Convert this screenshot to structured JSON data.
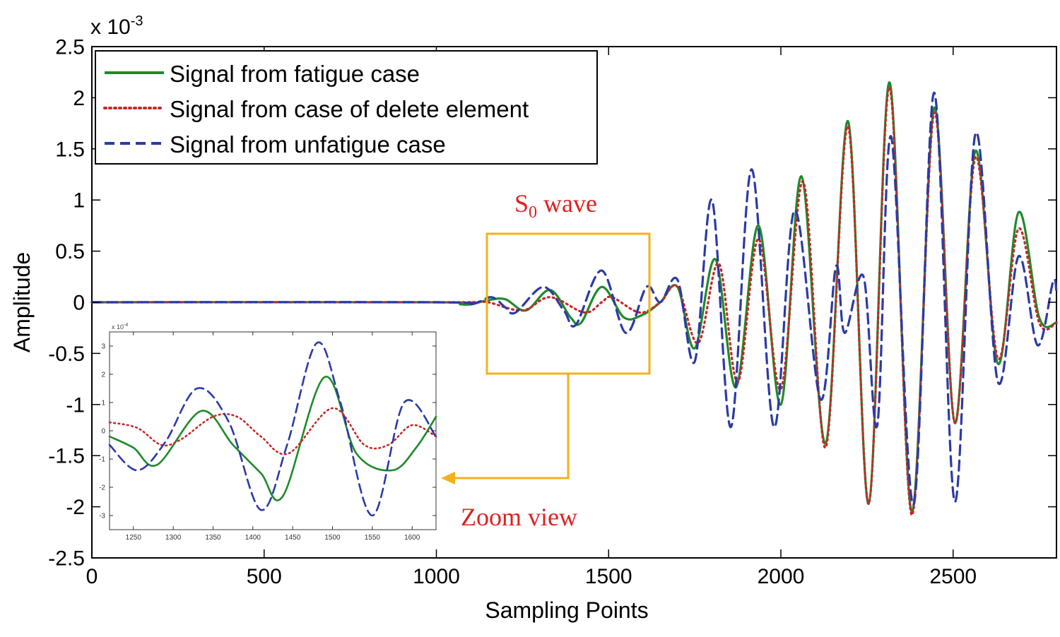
{
  "chart_data": [
    {
      "type": "line",
      "xlabel": "Sampling Points",
      "ylabel": "Amplitude",
      "y_multiplier": "x 10",
      "y_exponent": "-3",
      "xlim": [
        0,
        2800
      ],
      "ylim": [
        -2.5,
        2.5
      ],
      "x_ticks": [
        0,
        500,
        1000,
        1500,
        2000,
        2500
      ],
      "x_tick_labels": [
        "0",
        "500",
        "1000",
        "1500",
        "2000",
        "2500"
      ],
      "y_ticks": [
        2.5,
        2,
        1.5,
        1,
        0.5,
        0,
        -0.5,
        -1,
        -1.5,
        -2,
        -2.5
      ],
      "y_tick_labels": [
        "2.5",
        "2",
        "1.5",
        "1",
        "0.5",
        "0",
        "-0.5",
        "-1",
        "-1.5",
        "-2",
        "-2.5"
      ],
      "legend_position": "top-left",
      "series": [
        {
          "name": "Signal from fatigue case",
          "color": "#1f8a2a",
          "dash": "solid",
          "points": [
            [
              0,
              0
            ],
            [
              1000,
              0
            ],
            [
              1070,
              -0.02
            ],
            [
              1100,
              -0.02
            ],
            [
              1150,
              0.02
            ],
            [
              1200,
              0.03
            ],
            [
              1260,
              -0.08
            ],
            [
              1330,
              0.12
            ],
            [
              1390,
              -0.15
            ],
            [
              1420,
              -0.2
            ],
            [
              1480,
              0.15
            ],
            [
              1545,
              -0.15
            ],
            [
              1600,
              -0.12
            ],
            [
              1650,
              0.0
            ],
            [
              1700,
              0.15
            ],
            [
              1750,
              -0.45
            ],
            [
              1810,
              0.42
            ],
            [
              1870,
              -0.83
            ],
            [
              1935,
              0.75
            ],
            [
              2000,
              -1.0
            ],
            [
              2060,
              1.23
            ],
            [
              2130,
              -1.38
            ],
            [
              2195,
              1.77
            ],
            [
              2255,
              -1.97
            ],
            [
              2315,
              2.15
            ],
            [
              2380,
              -2.05
            ],
            [
              2445,
              1.9
            ],
            [
              2505,
              -1.18
            ],
            [
              2565,
              1.48
            ],
            [
              2630,
              -0.6
            ],
            [
              2690,
              0.88
            ],
            [
              2750,
              -0.15
            ],
            [
              2800,
              -0.2
            ]
          ]
        },
        {
          "name": "Signal from case of delete element",
          "color": "#c62828",
          "dash": "dotted",
          "points": [
            [
              0,
              0
            ],
            [
              1000,
              0
            ],
            [
              1100,
              0
            ],
            [
              1150,
              0.0
            ],
            [
              1250,
              -0.08
            ],
            [
              1330,
              0.05
            ],
            [
              1430,
              -0.1
            ],
            [
              1480,
              0.0
            ],
            [
              1510,
              0.05
            ],
            [
              1590,
              -0.1
            ],
            [
              1650,
              0.0
            ],
            [
              1700,
              0.15
            ],
            [
              1760,
              -0.4
            ],
            [
              1820,
              0.38
            ],
            [
              1875,
              -0.78
            ],
            [
              1935,
              0.62
            ],
            [
              2000,
              -0.85
            ],
            [
              2065,
              1.18
            ],
            [
              2130,
              -1.42
            ],
            [
              2195,
              1.72
            ],
            [
              2255,
              -1.97
            ],
            [
              2315,
              2.1
            ],
            [
              2380,
              -2.08
            ],
            [
              2445,
              1.85
            ],
            [
              2505,
              -1.18
            ],
            [
              2565,
              1.42
            ],
            [
              2630,
              -0.55
            ],
            [
              2690,
              0.72
            ],
            [
              2750,
              -0.2
            ],
            [
              2800,
              -0.2
            ]
          ]
        },
        {
          "name": "Signal from unfatigue case",
          "color": "#2b3aa8",
          "dash": "dashed",
          "points": [
            [
              0,
              0
            ],
            [
              1000,
              0
            ],
            [
              1100,
              -0.02
            ],
            [
              1160,
              0.05
            ],
            [
              1200,
              -0.05
            ],
            [
              1230,
              -0.1
            ],
            [
              1310,
              0.15
            ],
            [
              1370,
              -0.08
            ],
            [
              1405,
              -0.22
            ],
            [
              1480,
              0.31
            ],
            [
              1550,
              -0.3
            ],
            [
              1610,
              0.15
            ],
            [
              1650,
              0.0
            ],
            [
              1700,
              0.22
            ],
            [
              1750,
              -0.58
            ],
            [
              1800,
              1.0
            ],
            [
              1855,
              -1.22
            ],
            [
              1915,
              1.3
            ],
            [
              1980,
              -1.22
            ],
            [
              2040,
              0.9
            ],
            [
              2115,
              -0.95
            ],
            [
              2160,
              0.35
            ],
            [
              2185,
              -0.3
            ],
            [
              2240,
              0.25
            ],
            [
              2280,
              -1.2
            ],
            [
              2320,
              1.62
            ],
            [
              2385,
              -1.98
            ],
            [
              2445,
              2.05
            ],
            [
              2505,
              -1.95
            ],
            [
              2565,
              1.65
            ],
            [
              2630,
              -0.78
            ],
            [
              2690,
              0.45
            ],
            [
              2745,
              -0.42
            ],
            [
              2790,
              0.2
            ],
            [
              2800,
              0.1
            ]
          ]
        }
      ]
    },
    {
      "type": "line",
      "title": "Zoom view",
      "y_multiplier": "x 10",
      "y_exponent": "-4",
      "xlim": [
        1220,
        1630
      ],
      "ylim": [
        -3.5,
        3.5
      ],
      "x_ticks": [
        1250,
        1300,
        1350,
        1400,
        1450,
        1500,
        1550,
        1600
      ],
      "x_tick_labels": [
        "1250",
        "1300",
        "1350",
        "1400",
        "1450",
        "1500",
        "1550",
        "1600"
      ],
      "y_ticks": [
        3,
        2,
        1,
        0,
        -1,
        -2,
        -3
      ],
      "y_tick_labels": [
        "3",
        "2",
        "1",
        "0",
        "-1",
        "-2",
        "-3"
      ],
      "series": [
        {
          "name": "Signal from fatigue case",
          "color": "#1f8a2a",
          "dash": "solid",
          "points": [
            [
              1220,
              -0.2
            ],
            [
              1250,
              -0.6
            ],
            [
              1280,
              -1.2
            ],
            [
              1335,
              0.7
            ],
            [
              1375,
              -0.5
            ],
            [
              1410,
              -1.5
            ],
            [
              1438,
              -2.3
            ],
            [
              1490,
              1.9
            ],
            [
              1530,
              -0.8
            ],
            [
              1575,
              -1.4
            ],
            [
              1605,
              -0.6
            ],
            [
              1630,
              0.5
            ]
          ]
        },
        {
          "name": "Signal from case of delete element",
          "color": "#c62828",
          "dash": "dotted",
          "points": [
            [
              1220,
              0.3
            ],
            [
              1255,
              0.1
            ],
            [
              1285,
              -0.5
            ],
            [
              1310,
              -0.3
            ],
            [
              1350,
              0.5
            ],
            [
              1380,
              0.5
            ],
            [
              1410,
              -0.2
            ],
            [
              1445,
              -0.8
            ],
            [
              1500,
              0.8
            ],
            [
              1540,
              -0.5
            ],
            [
              1570,
              -0.5
            ],
            [
              1600,
              0.2
            ],
            [
              1630,
              -0.2
            ]
          ]
        },
        {
          "name": "Signal from unfatigue case",
          "color": "#2b3aa8",
          "dash": "dashed",
          "points": [
            [
              1220,
              -0.5
            ],
            [
              1255,
              -1.4
            ],
            [
              1290,
              -0.4
            ],
            [
              1330,
              1.5
            ],
            [
              1370,
              0.3
            ],
            [
              1410,
              -2.8
            ],
            [
              1443,
              -0.5
            ],
            [
              1480,
              3.1
            ],
            [
              1510,
              1.0
            ],
            [
              1550,
              -3.0
            ],
            [
              1590,
              1.0
            ],
            [
              1630,
              -0.2
            ]
          ]
        }
      ]
    }
  ],
  "annotations": {
    "s0_main": "S",
    "s0_sub": "0",
    "s0_rest": " wave",
    "zoom_label": "Zoom view",
    "box_color": "#f2b21b",
    "label_color": "#e02020"
  }
}
